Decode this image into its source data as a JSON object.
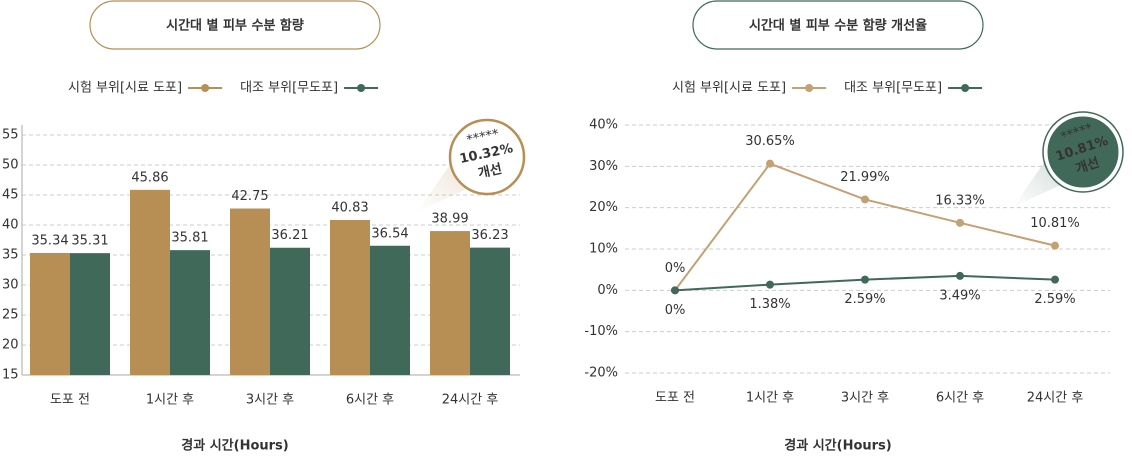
{
  "chart_data": [
    {
      "type": "bar",
      "title": "시간대 별 피부 수분 함량",
      "categories": [
        "도포 전",
        "1시간 후",
        "3시간 후",
        "6시간 후",
        "24시간 후"
      ],
      "series": [
        {
          "name": "시험 부위[시료 도포]",
          "color": "#b78f54",
          "values": [
            35.34,
            45.86,
            42.75,
            40.83,
            38.99
          ]
        },
        {
          "name": "대조 부위[무도포]",
          "color": "#41695a",
          "values": [
            35.31,
            35.81,
            36.21,
            36.54,
            36.23
          ]
        }
      ],
      "ylim": [
        15,
        55
      ],
      "yticks": [
        15,
        20,
        25,
        30,
        35,
        40,
        45,
        50,
        55
      ],
      "grid": true,
      "x_label": "경과 시간(Hours)",
      "badge": {
        "stars": "*****",
        "value": "10.32%",
        "label": "개선"
      }
    },
    {
      "type": "line",
      "title": "시간대 별 피부 수분 함량 개선율",
      "categories": [
        "도포 전",
        "1시간 후",
        "3시간 후",
        "6시간 후",
        "24시간 후"
      ],
      "series": [
        {
          "name": "시험 부위[시료 도포]",
          "color": "#c4a072",
          "values": [
            0,
            30.65,
            21.99,
            16.33,
            10.81
          ],
          "value_labels": [
            "0%",
            "30.65%",
            "21.99%",
            "16.33%",
            "10.81%"
          ]
        },
        {
          "name": "대조 부위[무도포]",
          "color": "#41695a",
          "values": [
            0,
            1.38,
            2.59,
            3.49,
            2.59
          ],
          "value_labels": [
            "0%",
            "1.38%",
            "2.59%",
            "3.49%",
            "2.59%"
          ]
        }
      ],
      "ylim": [
        -20,
        40
      ],
      "yticks": [
        {
          "value": -20,
          "label": "-20%"
        },
        {
          "value": -10,
          "label": "-10%"
        },
        {
          "value": 0,
          "label": "0%"
        },
        {
          "value": 10,
          "label": "10%"
        },
        {
          "value": 20,
          "label": "20%"
        },
        {
          "value": 30,
          "label": "30%"
        },
        {
          "value": 40,
          "label": "40%"
        }
      ],
      "grid": true,
      "x_label": "경과 시간(Hours)",
      "badge": {
        "stars": "*****",
        "value": "10.81%",
        "label": "개선"
      }
    }
  ]
}
